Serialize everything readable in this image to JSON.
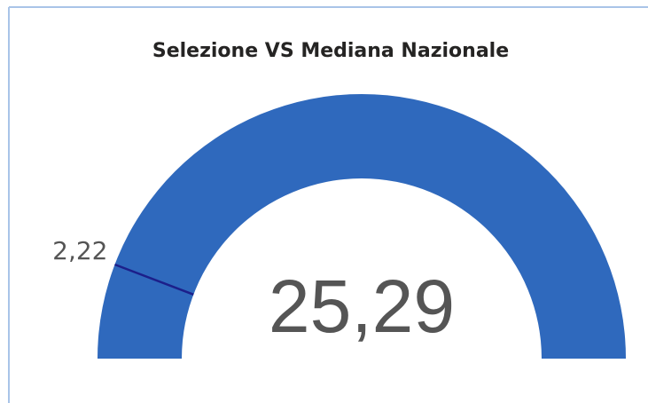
{
  "chart_data": {
    "type": "gauge",
    "title": "Selezione VS Mediana Nazionale",
    "values": [
      25.29
    ],
    "value_labels": [
      "25,29"
    ],
    "target": {
      "value": 2.22,
      "label": "2,22"
    },
    "ylim": [
      -0.8,
      25.29
    ],
    "color": "#2f69bd",
    "target_color": "#1c1f8a"
  }
}
